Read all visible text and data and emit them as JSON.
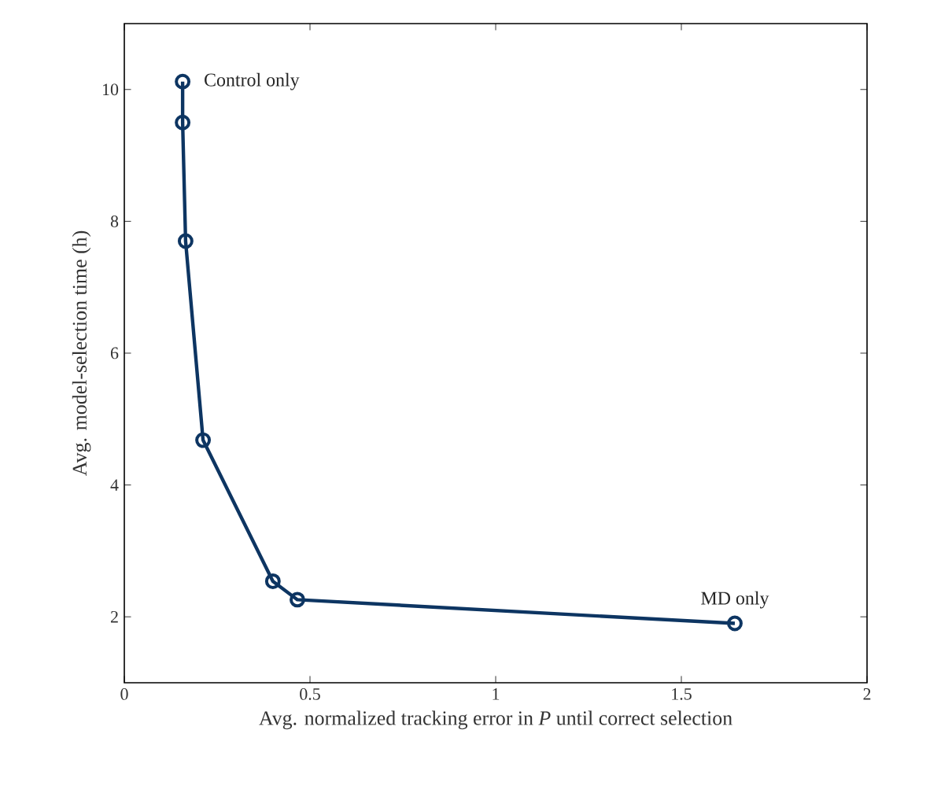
{
  "chart_data": {
    "type": "line",
    "xlabel": "Avg. normalized tracking error in *P* until correct selection",
    "ylabel": "Avg. model-selection time (h)",
    "x": [
      0.157,
      0.157,
      0.165,
      0.212,
      0.4,
      0.466,
      1.644
    ],
    "series": [
      {
        "color": "#0d3562",
        "values": [
          10.12,
          9.5,
          7.7,
          4.68,
          2.54,
          2.26,
          1.9
        ]
      }
    ],
    "marker": "circle",
    "line_style": "solid",
    "xlim": [
      0,
      2
    ],
    "ylim": [
      1,
      11
    ],
    "xticks": [
      0,
      0.5,
      1,
      1.5,
      2
    ],
    "yticks": [
      2,
      4,
      6,
      8,
      10
    ],
    "annotations": [
      {
        "text": "Control only",
        "x": 0.157,
        "y": 10.12
      },
      {
        "text": "MD only",
        "x": 1.644,
        "y": 1.9
      }
    ]
  }
}
